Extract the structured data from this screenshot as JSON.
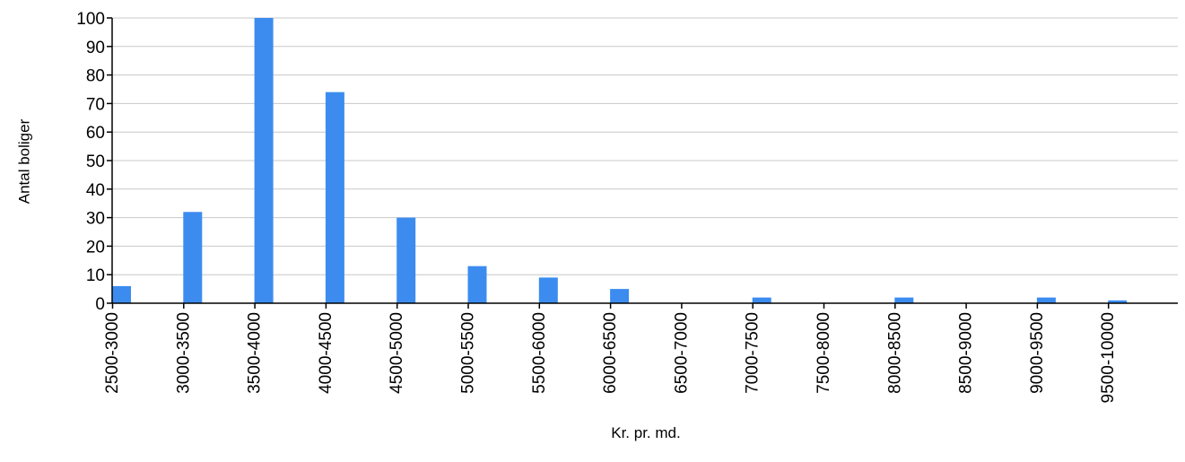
{
  "chart_data": {
    "type": "bar",
    "title": "",
    "xlabel": "Kr. pr. md.",
    "ylabel": "Antal boliger",
    "categories": [
      "2500-3000",
      "3000-3500",
      "3500-4000",
      "4000-4500",
      "4500-5000",
      "5000-5500",
      "5500-6000",
      "6000-6500",
      "6500-7000",
      "7000-7500",
      "7500-8000",
      "8000-8500",
      "8500-9000",
      "9000-9500",
      "9500-10000"
    ],
    "values": [
      6,
      32,
      100,
      74,
      30,
      13,
      9,
      5,
      0,
      2,
      0,
      2,
      0,
      2,
      1
    ],
    "ylim": [
      0,
      100
    ],
    "yticks": [
      0,
      10,
      20,
      30,
      40,
      50,
      60,
      70,
      80,
      90,
      100
    ],
    "grid": true,
    "legend": "none",
    "bar_color": "#3c8cf0"
  }
}
